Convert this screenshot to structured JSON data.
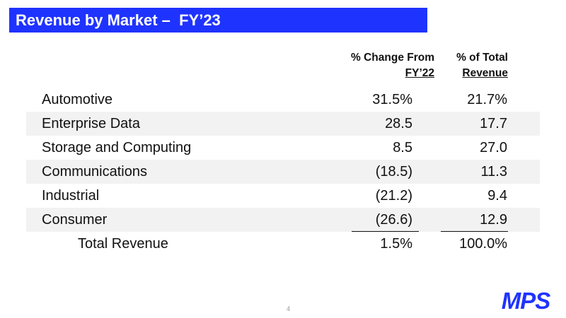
{
  "slide": {
    "title": "Revenue by Market –  FY’23",
    "page_number": "4",
    "logo_text": "MPS",
    "accent_color": "#1f33ff"
  },
  "table": {
    "headers": {
      "change_line1": "% Change From",
      "change_line2": "FY’22",
      "total_line1": "% of Total",
      "total_line2": "Revenue"
    },
    "rows": [
      {
        "market": "Automotive",
        "change": "31.5%",
        "share": "21.7%"
      },
      {
        "market": "Enterprise Data",
        "change": "28.5",
        "share": "17.7"
      },
      {
        "market": "Storage and Computing",
        "change": "8.5",
        "share": "27.0"
      },
      {
        "market": "Communications",
        "change": "(18.5)",
        "share": "11.3"
      },
      {
        "market": "Industrial",
        "change": "(21.2)",
        "share": "9.4"
      },
      {
        "market": "Consumer",
        "change": "(26.6)",
        "share": "12.9"
      }
    ],
    "total": {
      "label": "Total Revenue",
      "change": "1.5%",
      "share": "100.0%"
    }
  }
}
